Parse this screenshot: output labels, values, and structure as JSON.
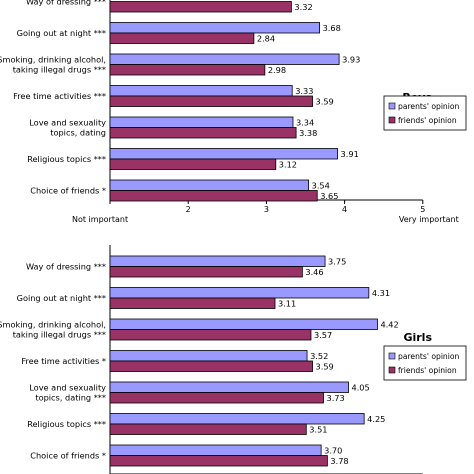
{
  "chart_data": [
    {
      "type": "bar",
      "orientation": "horizontal",
      "title": "Boys",
      "categories": [
        "Way of dressing ***",
        "Going out at night ***",
        "Smoking, drinking alcohol,\ntaking illegal drugs ***",
        "Free time activities ***",
        "Love and sexuality\ntopics, dating",
        "Religious topics ***",
        "Choice of friends *"
      ],
      "series": [
        {
          "name": "parents' opinion",
          "values": [
            null,
            3.68,
            3.93,
            3.33,
            3.34,
            3.91,
            3.54
          ]
        },
        {
          "name": "friends' opinion",
          "values": [
            3.32,
            2.84,
            2.98,
            3.59,
            3.38,
            3.12,
            3.65
          ]
        }
      ],
      "xlim": [
        1,
        5
      ],
      "xticks": [
        "",
        "2",
        "3",
        "4",
        "5"
      ],
      "xtick_end_labels": {
        "left": "Not important",
        "right": "Very important"
      },
      "legend": "right",
      "colors": {
        "parents": "#9999ff",
        "friends": "#993366"
      }
    },
    {
      "type": "bar",
      "orientation": "horizontal",
      "title": "Girls",
      "categories": [
        "Way of dressing ***",
        "Going out at night ***",
        "Smoking, drinking alcohol,\ntaking illegal drugs ***",
        "Free time activities *",
        "Love and sexuality\ntopics, dating ***",
        "Religious topics ***",
        "Choice of friends *"
      ],
      "series": [
        {
          "name": "parents' opinion",
          "values": [
            3.75,
            4.31,
            4.42,
            3.52,
            4.05,
            4.25,
            3.7
          ]
        },
        {
          "name": "friends' opinion",
          "values": [
            3.46,
            3.11,
            3.57,
            3.59,
            3.73,
            3.51,
            3.78
          ]
        }
      ],
      "xlim": [
        1,
        5
      ],
      "legend": "right",
      "colors": {
        "parents": "#9999ff",
        "friends": "#993366"
      }
    }
  ]
}
